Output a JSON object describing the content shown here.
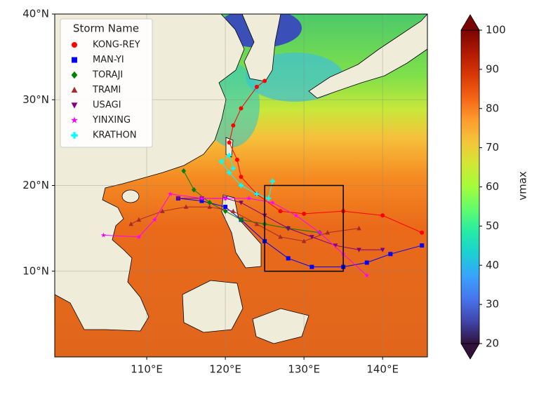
{
  "chart_data": {
    "type": "map",
    "xlim": [
      98.3,
      145.7
    ],
    "ylim": [
      0,
      40
    ],
    "xticks": [
      {
        "value": 110,
        "label": "110°E"
      },
      {
        "value": 120,
        "label": "120°E"
      },
      {
        "value": 130,
        "label": "130°E"
      },
      {
        "value": 140,
        "label": "140°E"
      }
    ],
    "yticks": [
      {
        "value": 10,
        "label": "10°N"
      },
      {
        "value": 20,
        "label": "20°N"
      },
      {
        "value": 30,
        "label": "30°N"
      },
      {
        "value": 40,
        "label": "40°N"
      }
    ],
    "grid": true,
    "legend_title": "Storm Name",
    "legend_loc": "upper left",
    "box": {
      "lon": [
        125,
        135
      ],
      "lat": [
        10,
        20
      ]
    },
    "colorbar": {
      "label": "vmax",
      "lim": [
        20,
        100
      ],
      "ticks": [
        20,
        30,
        40,
        50,
        60,
        70,
        80,
        90,
        100
      ],
      "cmap": "turbo",
      "extend": "both"
    },
    "series": [
      {
        "name": "KONG-REY",
        "color": "#ff0000",
        "marker": "circle",
        "lon": [
          145,
          140,
          135,
          130,
          127,
          124,
          122,
          121.5,
          120.5,
          121,
          122,
          124,
          125
        ],
        "lat": [
          14.5,
          16.5,
          17,
          16.7,
          17,
          19,
          21,
          23,
          25,
          27,
          29,
          31.5,
          32.2
        ]
      },
      {
        "name": "MAN-YI",
        "color": "#0000ff",
        "marker": "square",
        "lon": [
          145,
          141,
          138,
          135,
          131,
          128,
          125,
          122,
          120,
          117,
          114
        ],
        "lat": [
          13,
          12,
          11,
          10.5,
          10.5,
          11.5,
          13.5,
          16,
          17.5,
          18.2,
          18.5
        ]
      },
      {
        "name": "TORAJI",
        "color": "#008000",
        "marker": "diamond",
        "lon": [
          132,
          128,
          125,
          122,
          120,
          118,
          116,
          114.7
        ],
        "lat": [
          14.5,
          15,
          15.5,
          16,
          17,
          18,
          19.5,
          21.7
        ]
      },
      {
        "name": "TRAMI",
        "color": "#a52a2a",
        "marker": "triangle-up",
        "lon": [
          137,
          133,
          130,
          127,
          124,
          121,
          118,
          115,
          112,
          109,
          108
        ],
        "lat": [
          15,
          14.5,
          13.5,
          14,
          15.5,
          17,
          17.5,
          17.5,
          17,
          16,
          15.5
        ]
      },
      {
        "name": "USAGI",
        "color": "#800080",
        "marker": "triangle-down",
        "lon": [
          140,
          137,
          134,
          131,
          128,
          125,
          122,
          120,
          117,
          114
        ],
        "lat": [
          12.5,
          12.5,
          13,
          14,
          15,
          16.5,
          18,
          18.5,
          18.5,
          18.5
        ]
      },
      {
        "name": "YINXING",
        "color": "#ff00ff",
        "marker": "star",
        "lon": [
          138,
          135,
          132,
          129,
          126,
          123,
          120,
          117,
          113,
          111,
          109,
          104.5
        ],
        "lat": [
          9.5,
          12,
          14.5,
          16.5,
          18,
          18.5,
          18.5,
          18.5,
          19,
          16,
          14,
          14.2
        ]
      },
      {
        "name": "KRATHON",
        "color": "#00ffff",
        "marker": "plus",
        "lon": [
          126,
          125.5,
          124,
          122,
          120.5,
          119.5,
          120.5,
          121
        ],
        "lat": [
          20.5,
          18.5,
          19,
          20,
          21.5,
          22.8,
          23.5,
          22
        ]
      }
    ]
  }
}
